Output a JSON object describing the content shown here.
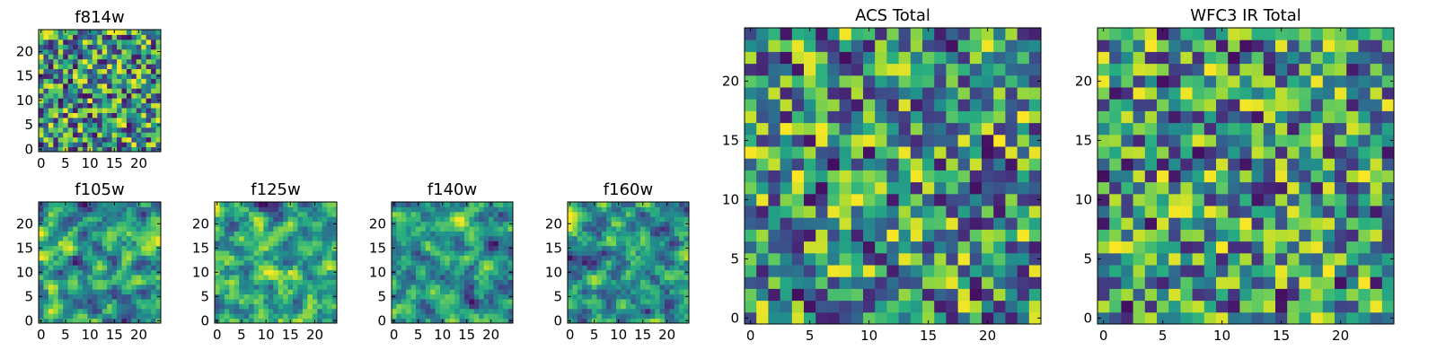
{
  "chart_data": [
    {
      "type": "heatmap",
      "title": "f814w",
      "grid_size": 25,
      "seed": 11,
      "pattern": "noise",
      "xlim": [
        0,
        24
      ],
      "ylim": [
        0,
        24
      ],
      "xticks": [
        0,
        5,
        10,
        15,
        20
      ],
      "yticks": [
        0,
        5,
        10,
        15,
        20
      ],
      "colormap": "viridis",
      "xlabel": "",
      "ylabel": ""
    },
    {
      "type": "heatmap",
      "title": "f105w",
      "grid_size": 25,
      "seed": 23,
      "pattern": "smooth",
      "xlim": [
        0,
        24
      ],
      "ylim": [
        0,
        24
      ],
      "xticks": [
        0,
        5,
        10,
        15,
        20
      ],
      "yticks": [
        0,
        5,
        10,
        15,
        20
      ],
      "colormap": "viridis",
      "xlabel": "",
      "ylabel": ""
    },
    {
      "type": "heatmap",
      "title": "f125w",
      "grid_size": 25,
      "seed": 37,
      "pattern": "smooth",
      "xlim": [
        0,
        24
      ],
      "ylim": [
        0,
        24
      ],
      "xticks": [
        0,
        5,
        10,
        15,
        20
      ],
      "yticks": [
        0,
        5,
        10,
        15,
        20
      ],
      "colormap": "viridis",
      "xlabel": "",
      "ylabel": ""
    },
    {
      "type": "heatmap",
      "title": "f140w",
      "grid_size": 25,
      "seed": 53,
      "pattern": "smooth",
      "xlim": [
        0,
        24
      ],
      "ylim": [
        0,
        24
      ],
      "xticks": [
        0,
        5,
        10,
        15,
        20
      ],
      "yticks": [
        0,
        5,
        10,
        15,
        20
      ],
      "colormap": "viridis",
      "xlabel": "",
      "ylabel": ""
    },
    {
      "type": "heatmap",
      "title": "f160w",
      "grid_size": 25,
      "seed": 71,
      "pattern": "smooth",
      "xlim": [
        0,
        24
      ],
      "ylim": [
        0,
        24
      ],
      "xticks": [
        0,
        5,
        10,
        15,
        20
      ],
      "yticks": [
        0,
        5,
        10,
        15,
        20
      ],
      "colormap": "viridis",
      "xlabel": "",
      "ylabel": ""
    },
    {
      "type": "heatmap",
      "title": "ACS Total",
      "grid_size": 25,
      "seed": 89,
      "pattern": "noise",
      "xlim": [
        0,
        24
      ],
      "ylim": [
        0,
        24
      ],
      "xticks": [
        0,
        5,
        10,
        15,
        20
      ],
      "yticks": [
        0,
        5,
        10,
        15,
        20
      ],
      "colormap": "viridis",
      "xlabel": "",
      "ylabel": ""
    },
    {
      "type": "heatmap",
      "title": "WFC3 IR Total",
      "grid_size": 25,
      "seed": 97,
      "pattern": "noise",
      "xlim": [
        0,
        24
      ],
      "ylim": [
        0,
        24
      ],
      "xticks": [
        0,
        5,
        10,
        15,
        20
      ],
      "yticks": [
        0,
        5,
        10,
        15,
        20
      ],
      "colormap": "viridis",
      "xlabel": "",
      "ylabel": ""
    }
  ]
}
